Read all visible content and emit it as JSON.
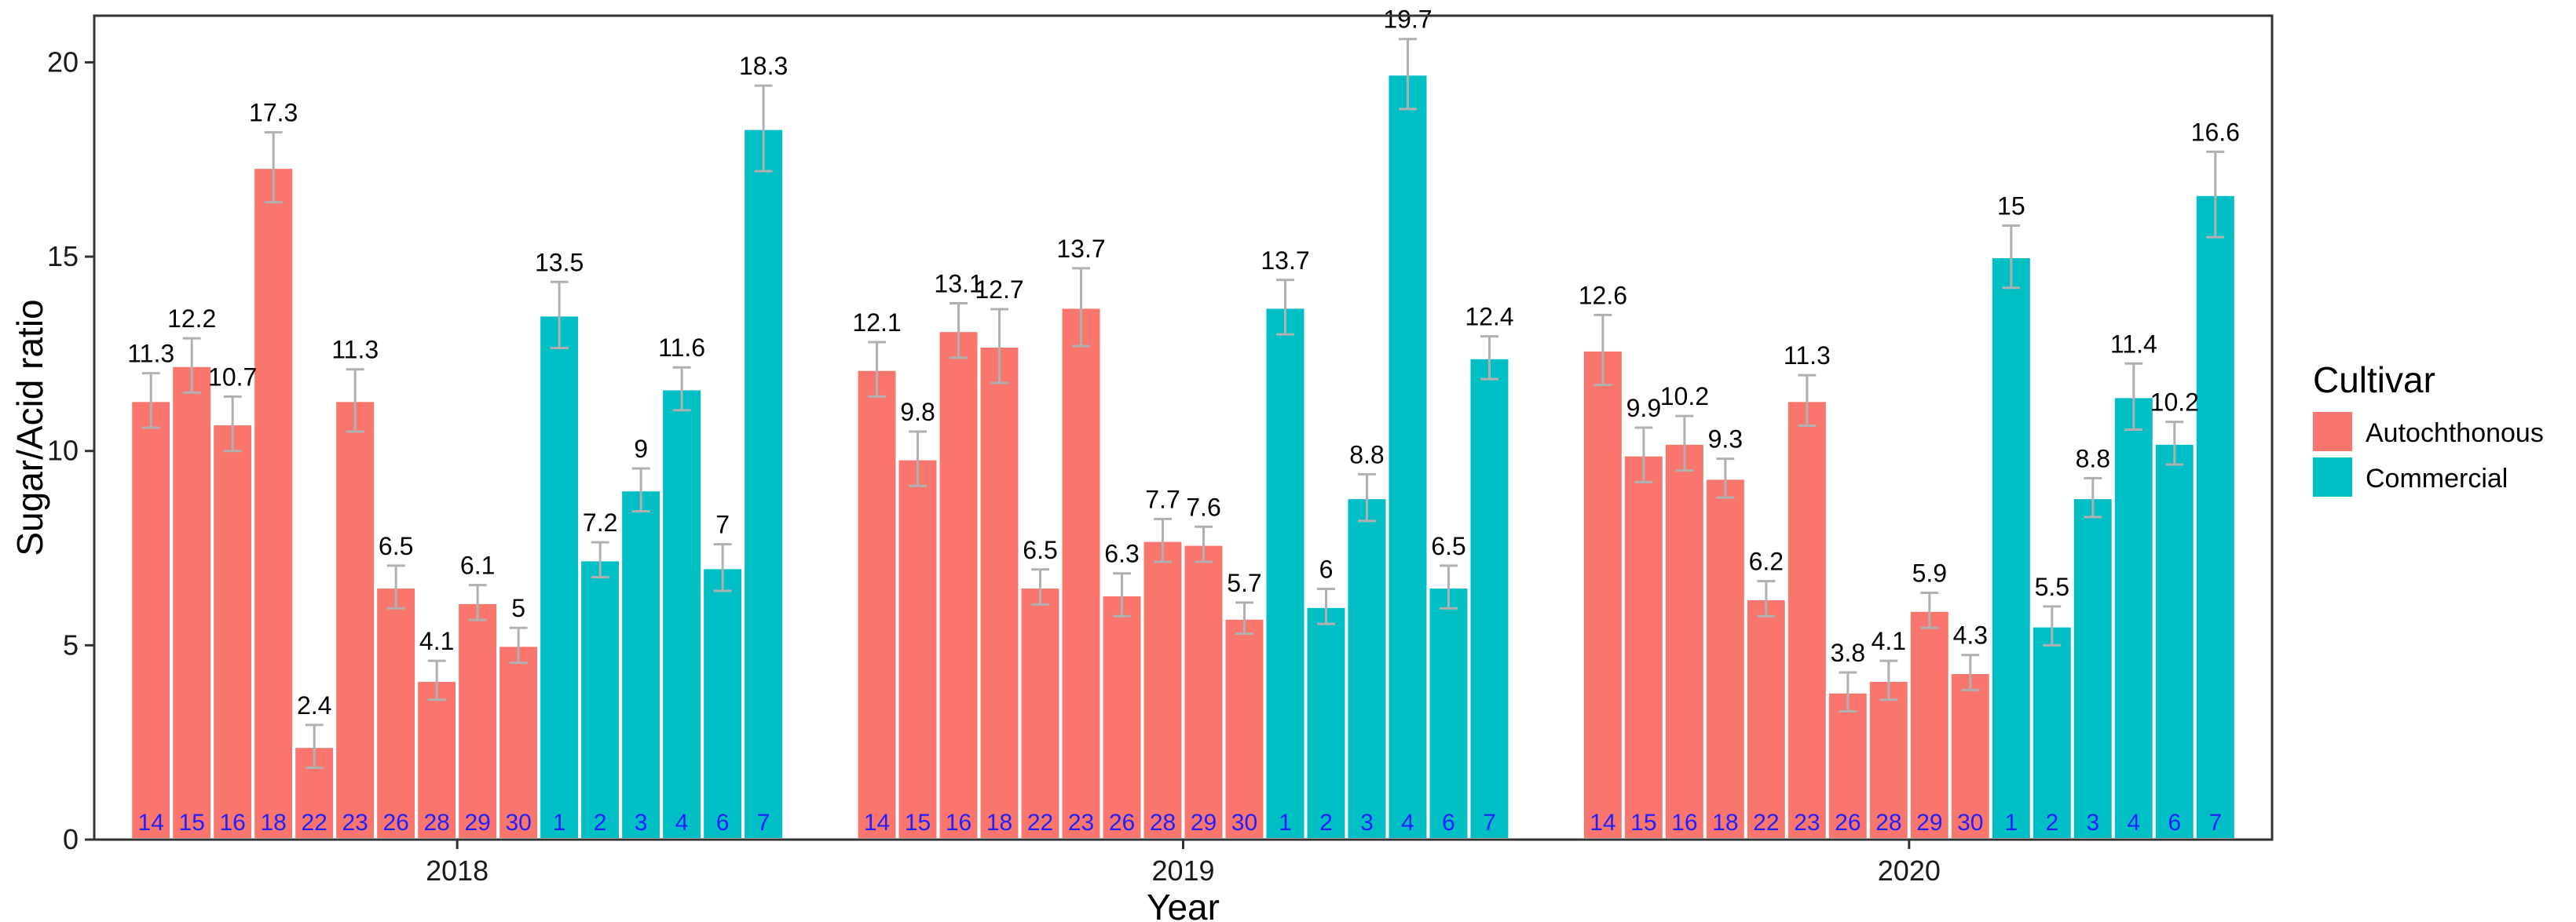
{
  "chart_data": {
    "type": "bar",
    "xlabel": "Year",
    "ylabel": "Sugar/Acid ratio",
    "ylim": [
      0,
      21.2
    ],
    "yticks": [
      0,
      5,
      10,
      15,
      20
    ],
    "grid": false,
    "legend": {
      "title": "Cultivar",
      "placement": "right",
      "entries": [
        {
          "name": "Autochthonous",
          "color": "#F8766D"
        },
        {
          "name": "Commercial",
          "color": "#00BFC4"
        }
      ]
    },
    "groups": [
      {
        "year": "2018",
        "bars": [
          {
            "id": "14",
            "value": 11.3,
            "error": 0.7,
            "cultivar": "Autochthonous"
          },
          {
            "id": "15",
            "value": 12.2,
            "error": 0.7,
            "cultivar": "Autochthonous"
          },
          {
            "id": "16",
            "value": 10.7,
            "error": 0.7,
            "cultivar": "Autochthonous"
          },
          {
            "id": "18",
            "value": 17.3,
            "error": 0.9,
            "cultivar": "Autochthonous"
          },
          {
            "id": "22",
            "value": 2.4,
            "error": 0.55,
            "cultivar": "Autochthonous"
          },
          {
            "id": "23",
            "value": 11.3,
            "error": 0.8,
            "cultivar": "Autochthonous"
          },
          {
            "id": "26",
            "value": 6.5,
            "error": 0.55,
            "cultivar": "Autochthonous"
          },
          {
            "id": "28",
            "value": 4.1,
            "error": 0.5,
            "cultivar": "Autochthonous"
          },
          {
            "id": "29",
            "value": 6.1,
            "error": 0.45,
            "cultivar": "Autochthonous"
          },
          {
            "id": "30",
            "value": 5,
            "error": 0.45,
            "cultivar": "Autochthonous"
          },
          {
            "id": "1",
            "value": 13.5,
            "error": 0.85,
            "cultivar": "Commercial"
          },
          {
            "id": "2",
            "value": 7.2,
            "error": 0.45,
            "cultivar": "Commercial"
          },
          {
            "id": "3",
            "value": 9,
            "error": 0.55,
            "cultivar": "Commercial"
          },
          {
            "id": "4",
            "value": 11.6,
            "error": 0.55,
            "cultivar": "Commercial"
          },
          {
            "id": "6",
            "value": 7,
            "error": 0.6,
            "cultivar": "Commercial"
          },
          {
            "id": "7",
            "value": 18.3,
            "error": 1.1,
            "cultivar": "Commercial"
          }
        ]
      },
      {
        "year": "2019",
        "bars": [
          {
            "id": "14",
            "value": 12.1,
            "error": 0.7,
            "cultivar": "Autochthonous"
          },
          {
            "id": "15",
            "value": 9.8,
            "error": 0.7,
            "cultivar": "Autochthonous"
          },
          {
            "id": "16",
            "value": 13.1,
            "error": 0.7,
            "cultivar": "Autochthonous"
          },
          {
            "id": "18",
            "value": 12.7,
            "error": 0.95,
            "cultivar": "Autochthonous"
          },
          {
            "id": "22",
            "value": 6.5,
            "error": 0.45,
            "cultivar": "Autochthonous"
          },
          {
            "id": "23",
            "value": 13.7,
            "error": 1.0,
            "cultivar": "Autochthonous"
          },
          {
            "id": "26",
            "value": 6.3,
            "error": 0.55,
            "cultivar": "Autochthonous"
          },
          {
            "id": "28",
            "value": 7.7,
            "error": 0.55,
            "cultivar": "Autochthonous"
          },
          {
            "id": "29",
            "value": 7.6,
            "error": 0.45,
            "cultivar": "Autochthonous"
          },
          {
            "id": "30",
            "value": 5.7,
            "error": 0.4,
            "cultivar": "Autochthonous"
          },
          {
            "id": "1",
            "value": 13.7,
            "error": 0.7,
            "cultivar": "Commercial"
          },
          {
            "id": "2",
            "value": 6,
            "error": 0.45,
            "cultivar": "Commercial"
          },
          {
            "id": "3",
            "value": 8.8,
            "error": 0.6,
            "cultivar": "Commercial"
          },
          {
            "id": "4",
            "value": 19.7,
            "error": 0.9,
            "cultivar": "Commercial"
          },
          {
            "id": "6",
            "value": 6.5,
            "error": 0.55,
            "cultivar": "Commercial"
          },
          {
            "id": "7",
            "value": 12.4,
            "error": 0.55,
            "cultivar": "Commercial"
          }
        ]
      },
      {
        "year": "2020",
        "bars": [
          {
            "id": "14",
            "value": 12.6,
            "error": 0.9,
            "cultivar": "Autochthonous"
          },
          {
            "id": "15",
            "value": 9.9,
            "error": 0.7,
            "cultivar": "Autochthonous"
          },
          {
            "id": "16",
            "value": 10.2,
            "error": 0.7,
            "cultivar": "Autochthonous"
          },
          {
            "id": "18",
            "value": 9.3,
            "error": 0.5,
            "cultivar": "Autochthonous"
          },
          {
            "id": "22",
            "value": 6.2,
            "error": 0.45,
            "cultivar": "Autochthonous"
          },
          {
            "id": "23",
            "value": 11.3,
            "error": 0.65,
            "cultivar": "Autochthonous"
          },
          {
            "id": "26",
            "value": 3.8,
            "error": 0.5,
            "cultivar": "Autochthonous"
          },
          {
            "id": "28",
            "value": 4.1,
            "error": 0.5,
            "cultivar": "Autochthonous"
          },
          {
            "id": "29",
            "value": 5.9,
            "error": 0.45,
            "cultivar": "Autochthonous"
          },
          {
            "id": "30",
            "value": 4.3,
            "error": 0.45,
            "cultivar": "Autochthonous"
          },
          {
            "id": "1",
            "value": 15,
            "error": 0.8,
            "cultivar": "Commercial"
          },
          {
            "id": "2",
            "value": 5.5,
            "error": 0.5,
            "cultivar": "Commercial"
          },
          {
            "id": "3",
            "value": 8.8,
            "error": 0.5,
            "cultivar": "Commercial"
          },
          {
            "id": "4",
            "value": 11.4,
            "error": 0.85,
            "cultivar": "Commercial"
          },
          {
            "id": "6",
            "value": 10.2,
            "error": 0.55,
            "cultivar": "Commercial"
          },
          {
            "id": "7",
            "value": 16.6,
            "error": 1.1,
            "cultivar": "Commercial"
          }
        ]
      }
    ]
  }
}
